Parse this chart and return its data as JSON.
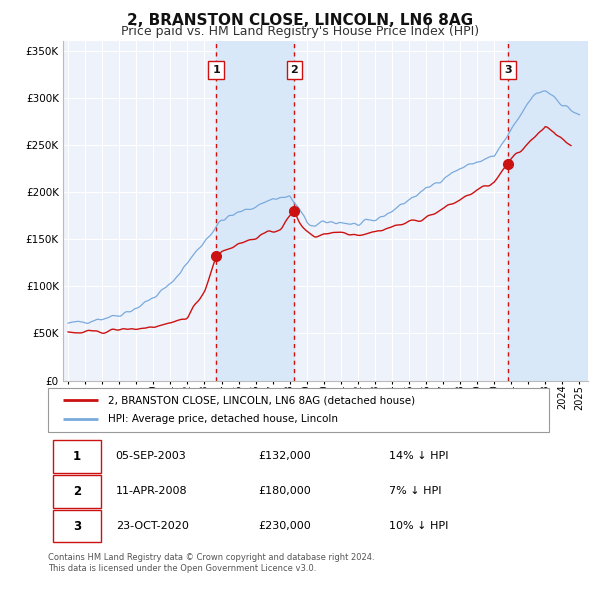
{
  "title": "2, BRANSTON CLOSE, LINCOLN, LN6 8AG",
  "subtitle": "Price paid vs. HM Land Registry's House Price Index (HPI)",
  "title_fontsize": 11,
  "subtitle_fontsize": 9,
  "background_color": "#ffffff",
  "plot_bg_color": "#eef2fa",
  "grid_color": "#ffffff",
  "ylim": [
    0,
    360000
  ],
  "yticks": [
    0,
    50000,
    100000,
    150000,
    200000,
    250000,
    300000,
    350000
  ],
  "xlim_start": 1994.7,
  "xlim_end": 2025.5,
  "xticks": [
    1995,
    1996,
    1997,
    1998,
    1999,
    2000,
    2001,
    2002,
    2003,
    2004,
    2005,
    2006,
    2007,
    2008,
    2009,
    2010,
    2011,
    2012,
    2013,
    2014,
    2015,
    2016,
    2017,
    2018,
    2019,
    2020,
    2021,
    2022,
    2023,
    2024,
    2025
  ],
  "sale_color": "#cc1111",
  "hpi_color": "#7aaadd",
  "vline_color": "#cc1111",
  "shade_color": "#d8e8f8",
  "transactions": [
    {
      "id": 1,
      "date_x": 2003.68,
      "price": 132000,
      "date_str": "05-SEP-2003",
      "pct": "14%"
    },
    {
      "id": 2,
      "date_x": 2008.27,
      "price": 180000,
      "date_str": "11-APR-2008",
      "pct": "7%"
    },
    {
      "id": 3,
      "date_x": 2020.81,
      "price": 230000,
      "date_str": "23-OCT-2020",
      "pct": "10%"
    }
  ],
  "legend_sale_label": "2, BRANSTON CLOSE, LINCOLN, LN6 8AG (detached house)",
  "legend_hpi_label": "HPI: Average price, detached house, Lincoln",
  "footer_line1": "Contains HM Land Registry data © Crown copyright and database right 2024.",
  "footer_line2": "This data is licensed under the Open Government Licence v3.0."
}
